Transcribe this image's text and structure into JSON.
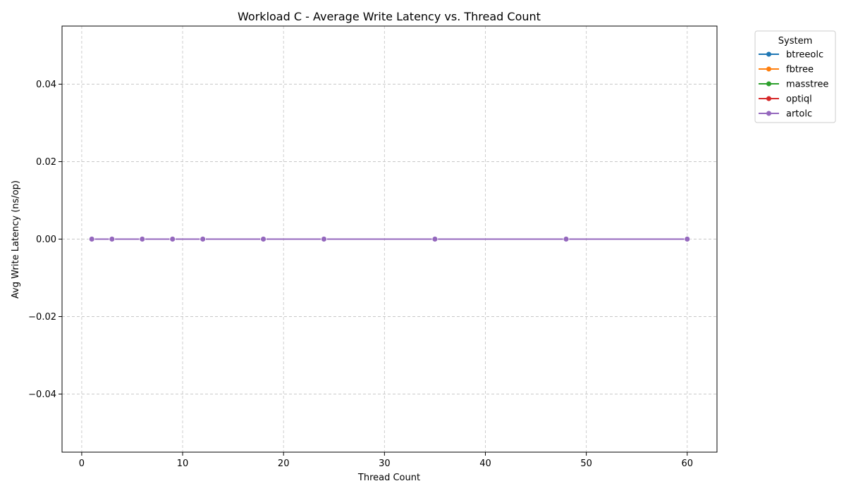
{
  "chart_data": {
    "type": "line",
    "title": "Workload C - Average Write Latency vs. Thread Count",
    "xlabel": "Thread Count",
    "ylabel": "Avg Write Latency (ns/op)",
    "xlim": [
      -1.95,
      62.95
    ],
    "ylim": [
      -0.055,
      0.055
    ],
    "xticks": [
      0,
      10,
      20,
      30,
      40,
      50,
      60
    ],
    "xtick_labels": [
      "0",
      "10",
      "20",
      "30",
      "40",
      "50",
      "60"
    ],
    "yticks": [
      -0.04,
      -0.02,
      0.0,
      0.02,
      0.04
    ],
    "ytick_labels": [
      "−0.04",
      "−0.02",
      "0.00",
      "0.02",
      "0.04"
    ],
    "grid": true,
    "legend": {
      "title": "System",
      "placement": "outside-top-right"
    },
    "x": [
      1,
      3,
      6,
      9,
      12,
      18,
      24,
      35,
      48,
      60
    ],
    "series": [
      {
        "name": "btreeolc",
        "color": "#1f77b4",
        "marker": "circle",
        "values": [
          0,
          0,
          0,
          0,
          0,
          0,
          0,
          0,
          0,
          0
        ]
      },
      {
        "name": "fbtree",
        "color": "#ff7f0e",
        "marker": "circle",
        "values": [
          0,
          0,
          0,
          0,
          0,
          0,
          0,
          0,
          0,
          0
        ]
      },
      {
        "name": "masstree",
        "color": "#2ca02c",
        "marker": "circle",
        "values": [
          0,
          0,
          0,
          0,
          0,
          0,
          0,
          0,
          0,
          0
        ]
      },
      {
        "name": "optiql",
        "color": "#d62728",
        "marker": "circle",
        "values": [
          0,
          0,
          0,
          0,
          0,
          0,
          0,
          0,
          0,
          0
        ]
      },
      {
        "name": "artolc",
        "color": "#9467bd",
        "marker": "circle",
        "values": [
          0,
          0,
          0,
          0,
          0,
          0,
          0,
          0,
          0,
          0
        ]
      }
    ]
  }
}
